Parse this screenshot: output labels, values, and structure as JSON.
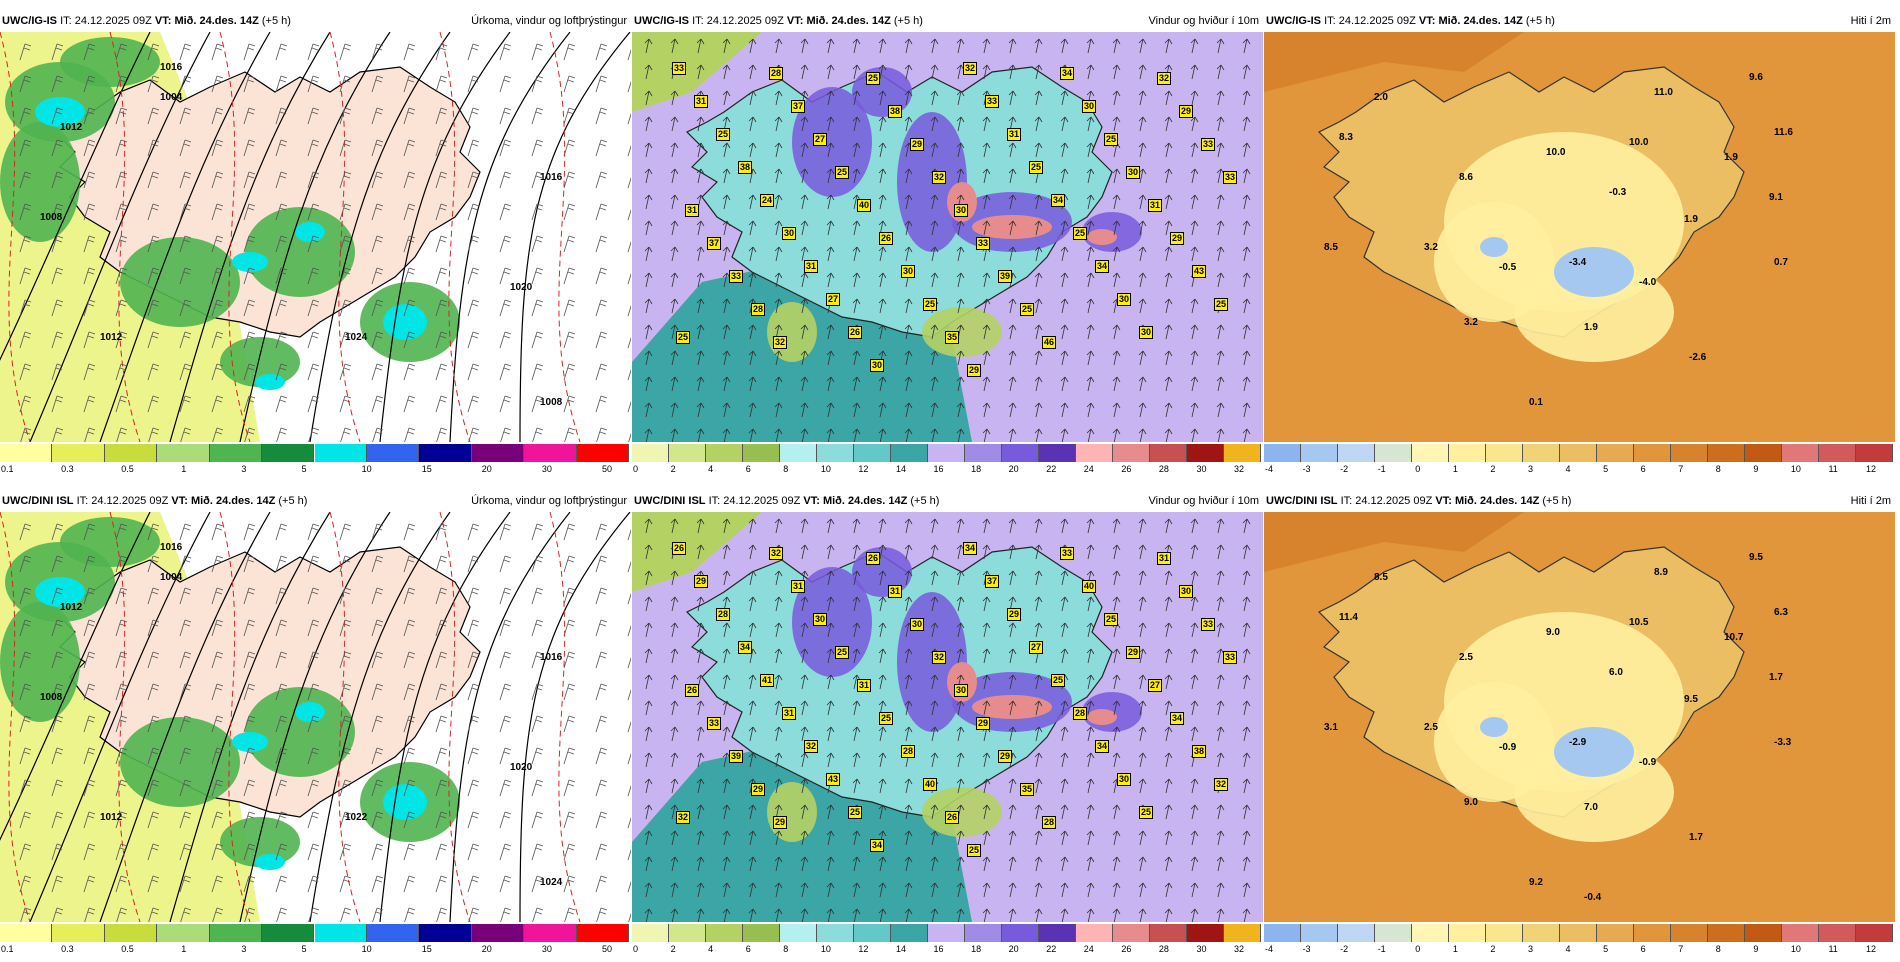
{
  "rows": [
    {
      "model": "UWC/IG-IS",
      "it_label": "IT:",
      "it_value": "24.12.2025 09Z",
      "vt_label": "VT:",
      "vt_value": "Mið. 24.des. 14Z",
      "lead": "(+5 h)",
      "panels": [
        {
          "title": "Úrkoma, vindur og loftþrýstingur",
          "isobars": [
            "1004",
            "1008",
            "1012",
            "1016",
            "1016",
            "1020",
            "1024",
            "1008",
            "1012"
          ],
          "colorbar_ticks": [
            "0.1",
            "0.3",
            "0.5",
            "1",
            "3",
            "5",
            "10",
            "15",
            "20",
            "30",
            "50"
          ],
          "colorbar_colors": [
            "#ffffa0",
            "#e6ef5a",
            "#c8dc3c",
            "#aadc78",
            "#50b450",
            "#148c3c",
            "#00e6e6",
            "#3264f0",
            "#000096",
            "#780078",
            "#f0149b",
            "#ff0000"
          ]
        },
        {
          "title": "Vindur og hviður í 10m",
          "gusts": [
            "33",
            "28",
            "25",
            "32",
            "34",
            "32",
            "31",
            "37",
            "38",
            "33",
            "30",
            "29",
            "25",
            "27",
            "29",
            "31",
            "25",
            "33",
            "38",
            "25",
            "32",
            "25",
            "30",
            "33",
            "24",
            "40",
            "30",
            "34",
            "31",
            "31",
            "30",
            "26",
            "33",
            "25",
            "29",
            "37",
            "31",
            "30",
            "39",
            "34",
            "43",
            "33",
            "27",
            "25",
            "25",
            "30",
            "25",
            "28",
            "26",
            "35",
            "46",
            "30",
            "25",
            "32",
            "30",
            "29"
          ],
          "colorbar_ticks": [
            "0",
            "2",
            "4",
            "6",
            "8",
            "10",
            "12",
            "14",
            "16",
            "18",
            "20",
            "22",
            "24",
            "26",
            "28",
            "30",
            "32"
          ],
          "colorbar_colors": [
            "#f0f5b4",
            "#d2e68c",
            "#b4d264",
            "#96be50",
            "#b4f0f0",
            "#8cdcdc",
            "#64c8c8",
            "#3ca5a5",
            "#c8b4f0",
            "#a08ce6",
            "#785adc",
            "#5a32b4",
            "#ffb4b4",
            "#e68c8c",
            "#c85050",
            "#a01414",
            "#f0b41e"
          ]
        },
        {
          "title": "Hiti í 2m",
          "temps": [
            "2.0",
            "11.0",
            "9.6",
            "8.3",
            "11.6",
            "10.0",
            "10.0",
            "1.9",
            "8.6",
            "-0.3",
            "9.1",
            "1.9",
            "8.5",
            "3.2",
            "-0.5",
            "-3.4",
            "0.7",
            "-4.0",
            "3.2",
            "1.9",
            "-2.6",
            "0.1"
          ],
          "colorbar_ticks": [
            "-4",
            "-3",
            "-2",
            "-1",
            "0",
            "1",
            "2",
            "3",
            "4",
            "5",
            "6",
            "7",
            "8",
            "9",
            "10",
            "11",
            "12"
          ],
          "colorbar_colors": [
            "#8cb4f0",
            "#a5c8f0",
            "#bed7f5",
            "#d7e6d2",
            "#fff5b4",
            "#fff0a0",
            "#fae68c",
            "#f0d278",
            "#ebbe64",
            "#e6aa50",
            "#e1963c",
            "#d7822d",
            "#cd6e1e",
            "#c35a14",
            "#e17878",
            "#d25a5a",
            "#c33c3c"
          ]
        }
      ]
    },
    {
      "model": "UWC/DINI ISL",
      "it_label": "IT:",
      "it_value": "24.12.2025 09Z",
      "vt_label": "VT:",
      "vt_value": "Mið. 24.des. 14Z",
      "lead": "(+5 h)",
      "panels": [
        {
          "title": "Úrkoma, vindur og loftþrýstingur",
          "isobars": [
            "1004",
            "1008",
            "1012",
            "1016",
            "1016",
            "1020",
            "1022",
            "1024",
            "1012"
          ],
          "colorbar_ticks": [
            "0.1",
            "0.3",
            "0.5",
            "1",
            "3",
            "5",
            "10",
            "15",
            "20",
            "30",
            "50"
          ],
          "colorbar_colors": [
            "#ffffa0",
            "#e6ef5a",
            "#c8dc3c",
            "#aadc78",
            "#50b450",
            "#148c3c",
            "#00e6e6",
            "#3264f0",
            "#000096",
            "#780078",
            "#f0149b",
            "#ff0000"
          ]
        },
        {
          "title": "Vindur og hviður í 10m",
          "gusts": [
            "26",
            "32",
            "26",
            "34",
            "33",
            "31",
            "29",
            "31",
            "31",
            "37",
            "40",
            "30",
            "28",
            "30",
            "30",
            "29",
            "25",
            "33",
            "34",
            "25",
            "32",
            "27",
            "29",
            "33",
            "41",
            "31",
            "30",
            "25",
            "27",
            "26",
            "31",
            "25",
            "29",
            "28",
            "34",
            "33",
            "32",
            "28",
            "29",
            "34",
            "38",
            "39",
            "43",
            "40",
            "35",
            "30",
            "32",
            "29",
            "25",
            "26",
            "28",
            "25",
            "32",
            "29",
            "34",
            "25"
          ],
          "colorbar_ticks": [
            "0",
            "2",
            "4",
            "6",
            "8",
            "10",
            "12",
            "14",
            "16",
            "18",
            "20",
            "22",
            "24",
            "26",
            "28",
            "30",
            "32"
          ],
          "colorbar_colors": [
            "#f0f5b4",
            "#d2e68c",
            "#b4d264",
            "#96be50",
            "#b4f0f0",
            "#8cdcdc",
            "#64c8c8",
            "#3ca5a5",
            "#c8b4f0",
            "#a08ce6",
            "#785adc",
            "#5a32b4",
            "#ffb4b4",
            "#e68c8c",
            "#c85050",
            "#a01414",
            "#f0b41e"
          ]
        },
        {
          "title": "Hiti í 2m",
          "temps": [
            "8.5",
            "8.9",
            "9.5",
            "11.4",
            "6.3",
            "9.0",
            "10.5",
            "10.7",
            "2.5",
            "6.0",
            "1.7",
            "9.5",
            "3.1",
            "2.5",
            "-0.9",
            "-2.9",
            "-3.3",
            "-0.9",
            "9.0",
            "7.0",
            "1.7",
            "9.2",
            "-0.4"
          ],
          "colorbar_ticks": [
            "-4",
            "-3",
            "-2",
            "-1",
            "0",
            "1",
            "2",
            "3",
            "4",
            "5",
            "6",
            "7",
            "8",
            "9",
            "10",
            "11",
            "12"
          ],
          "colorbar_colors": [
            "#8cb4f0",
            "#a5c8f0",
            "#bed7f5",
            "#d7e6d2",
            "#fff5b4",
            "#fff0a0",
            "#fae68c",
            "#f0d278",
            "#ebbe64",
            "#e6aa50",
            "#e1963c",
            "#d7822d",
            "#cd6e1e",
            "#c35a14",
            "#e17878",
            "#d25a5a",
            "#c33c3c"
          ]
        }
      ]
    }
  ]
}
